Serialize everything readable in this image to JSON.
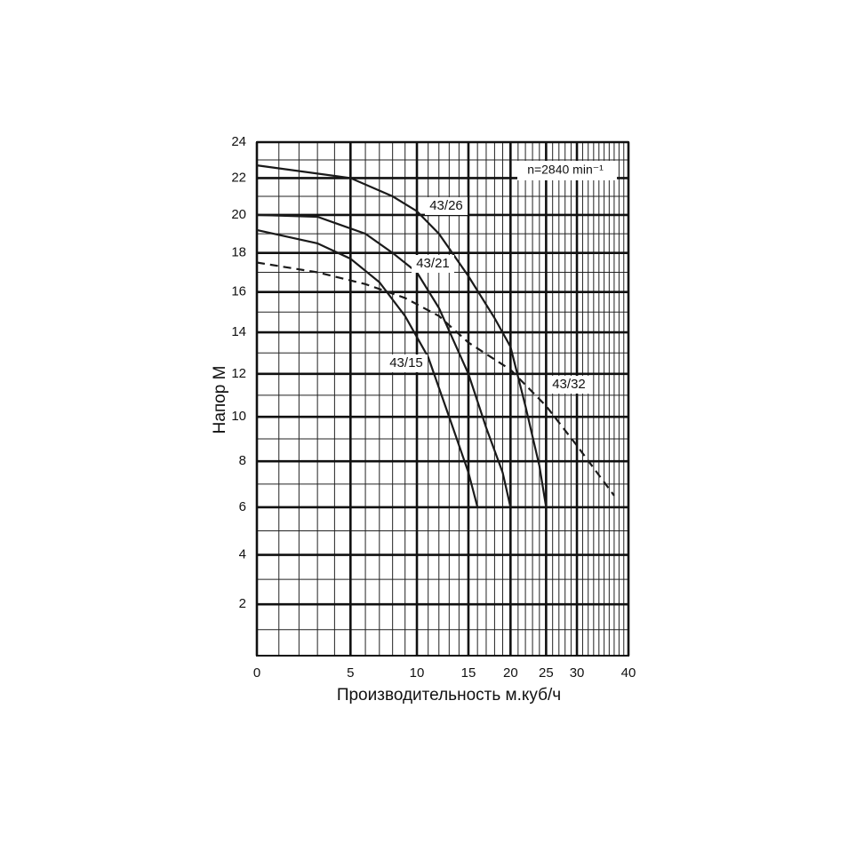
{
  "chart_data": {
    "type": "line",
    "annotation": "n=2840 min⁻¹",
    "xlabel": "Производительность м.куб/ч",
    "ylabel": "Напор М",
    "xlim": [
      0,
      40
    ],
    "xticks": [
      0,
      5,
      10,
      15,
      20,
      25,
      30,
      40
    ],
    "ylim": [
      0,
      24
    ],
    "yticks": [
      2,
      4,
      6,
      8,
      10,
      12,
      14,
      16,
      18,
      20,
      22,
      24
    ],
    "grid": true,
    "series": [
      {
        "name": "43/26",
        "color": "#1a1a1a",
        "dashed": false,
        "x": [
          0,
          5,
          8,
          10,
          12,
          15,
          18,
          20,
          22,
          24,
          25
        ],
        "values": [
          22.7,
          22,
          21,
          20.2,
          19,
          16.8,
          14.7,
          13.3,
          10.5,
          7.8,
          6
        ]
      },
      {
        "name": "43/21",
        "color": "#1a1a1a",
        "dashed": false,
        "x": [
          0,
          3,
          6,
          8,
          10,
          12,
          15,
          17,
          19,
          20
        ],
        "values": [
          20,
          19.9,
          19,
          18,
          17,
          15.2,
          12,
          9.5,
          7.5,
          6
        ]
      },
      {
        "name": "43/15",
        "color": "#1a1a1a",
        "dashed": false,
        "x": [
          0,
          3,
          5,
          7,
          9,
          11,
          13,
          15,
          16
        ],
        "values": [
          19.2,
          18.5,
          17.7,
          16.5,
          14.8,
          12.8,
          10,
          7.5,
          6
        ]
      },
      {
        "name": "43/32",
        "color": "#1a1a1a",
        "dashed": true,
        "x": [
          0,
          3,
          6,
          9,
          12,
          15,
          20,
          25,
          30,
          37
        ],
        "values": [
          17.5,
          17,
          16.4,
          15.7,
          14.8,
          13.5,
          12.2,
          10.5,
          8.7,
          6.5
        ]
      }
    ]
  }
}
